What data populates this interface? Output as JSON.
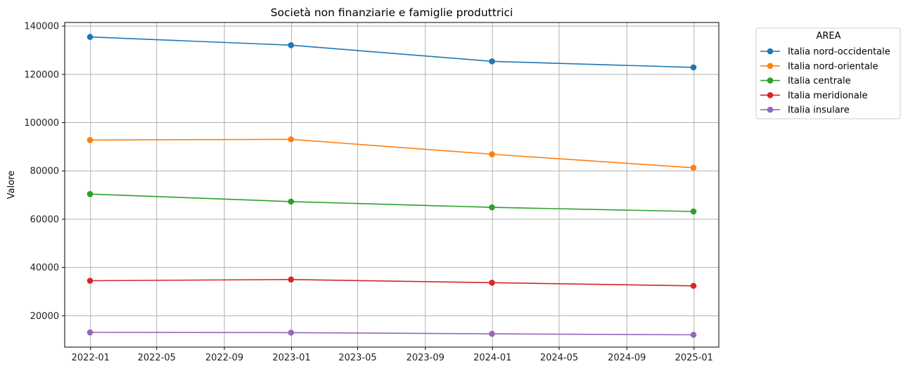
{
  "chart_data": {
    "type": "line",
    "title": "Società non finanziarie e famiglie produttrici",
    "xlabel": "",
    "ylabel": "Valore",
    "x": [
      "2021-12-31",
      "2022-12-31",
      "2023-12-31",
      "2024-12-31"
    ],
    "x_ticks": [
      "2022-01",
      "2022-05",
      "2022-09",
      "2023-01",
      "2023-05",
      "2023-09",
      "2024-01",
      "2024-05",
      "2024-09",
      "2025-01"
    ],
    "y_ticks": [
      20000,
      40000,
      60000,
      80000,
      100000,
      120000,
      140000
    ],
    "xlim": [
      "2021-11-15",
      "2025-02-15"
    ],
    "ylim": [
      7000,
      141500
    ],
    "grid": true,
    "legend": {
      "title": "AREA",
      "placement": "outside-top-right"
    },
    "series": [
      {
        "name": "Italia nord-occidentale",
        "color": "#1f77b4",
        "values": [
          135500,
          132100,
          125400,
          122900
        ]
      },
      {
        "name": "Italia nord-orientale",
        "color": "#ff7f0e",
        "values": [
          92800,
          93100,
          86900,
          81300
        ]
      },
      {
        "name": "Italia centrale",
        "color": "#2ca02c",
        "values": [
          70400,
          67300,
          64900,
          63200
        ]
      },
      {
        "name": "Italia meridionale",
        "color": "#d62728",
        "values": [
          34500,
          35000,
          33700,
          32400
        ]
      },
      {
        "name": "Italia insulare",
        "color": "#9467bd",
        "values": [
          13100,
          13000,
          12500,
          12100
        ]
      }
    ]
  }
}
